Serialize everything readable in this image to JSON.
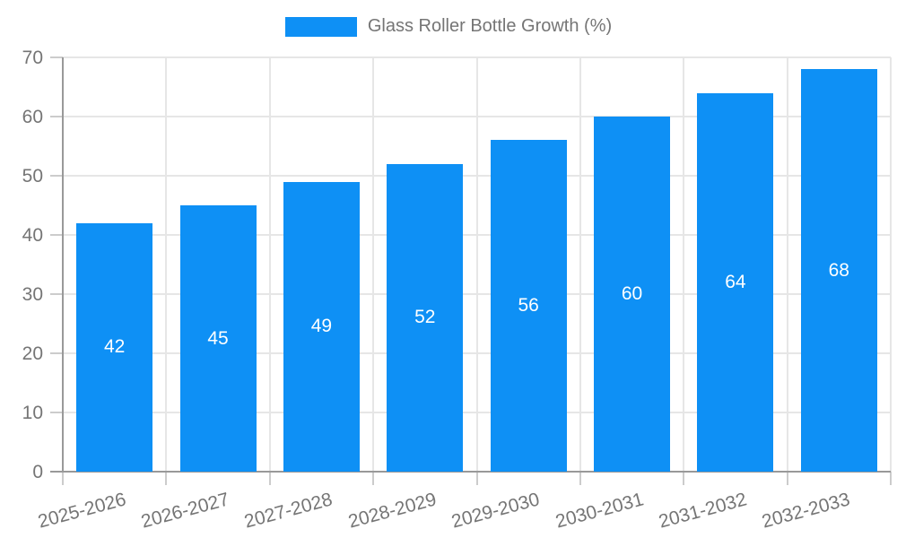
{
  "legend": {
    "label": "Glass Roller Bottle Growth (%)"
  },
  "chart_data": {
    "type": "bar",
    "title": "Glass Roller Bottle Growth (%)",
    "series_name": "Glass Roller Bottle Growth (%)",
    "categories": [
      "2025-2026",
      "2026-2027",
      "2027-2028",
      "2028-2029",
      "2029-2030",
      "2030-2031",
      "2031-2032",
      "2032-2033"
    ],
    "values": [
      42,
      45,
      49,
      52,
      56,
      60,
      64,
      68
    ],
    "value_labels": [
      "42",
      "45",
      "49",
      "52",
      "56",
      "60",
      "64",
      "68"
    ],
    "xlabel": "",
    "ylabel": "",
    "ylim": [
      0,
      70
    ],
    "yticks": [
      0,
      10,
      20,
      30,
      40,
      50,
      60,
      70
    ],
    "grid": true,
    "legend_position": "top-center",
    "x_label_rotation_deg": -15,
    "colors": {
      "bar": "#0e90f5",
      "value_label": "#ffffff",
      "axis_label": "#757575",
      "legend_label": "#757575",
      "gridline": "#e6e6e6",
      "axis_line": "#999999",
      "tick": "#cccccc",
      "background": "#ffffff"
    }
  }
}
